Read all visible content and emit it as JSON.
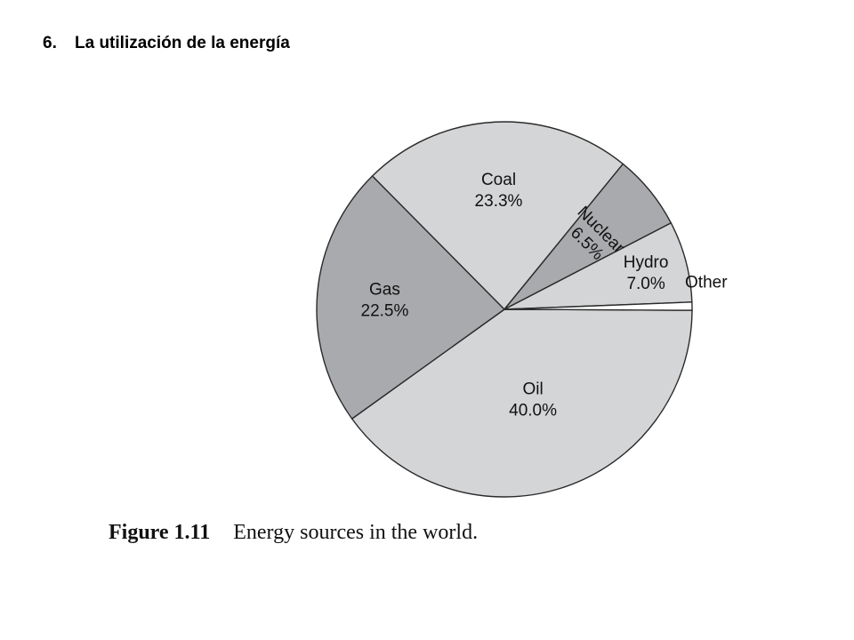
{
  "heading": {
    "number": "6.",
    "text": "La utilización de la energía"
  },
  "chart_data": {
    "type": "pie",
    "title": "",
    "slices": [
      {
        "label": "Oil",
        "value_label": "40.0%",
        "value": 40.0,
        "color": "#d4d5d7"
      },
      {
        "label": "Gas",
        "value_label": "22.5%",
        "value": 22.5,
        "color": "#a9aaad"
      },
      {
        "label": "Coal",
        "value_label": "23.3%",
        "value": 23.3,
        "color": "#d4d5d7"
      },
      {
        "label": "Nuclear",
        "value_label": "6.5%",
        "value": 6.5,
        "color": "#a9aaad"
      },
      {
        "label": "Hydro",
        "value_label": "7.0%",
        "value": 7.0,
        "color": "#d4d5d7"
      },
      {
        "label": "Other",
        "value_label": "",
        "value": 0.7,
        "color": "#ffffff"
      }
    ]
  },
  "caption": {
    "figure": "Figure 1.11",
    "text": "Energy sources in the world."
  }
}
